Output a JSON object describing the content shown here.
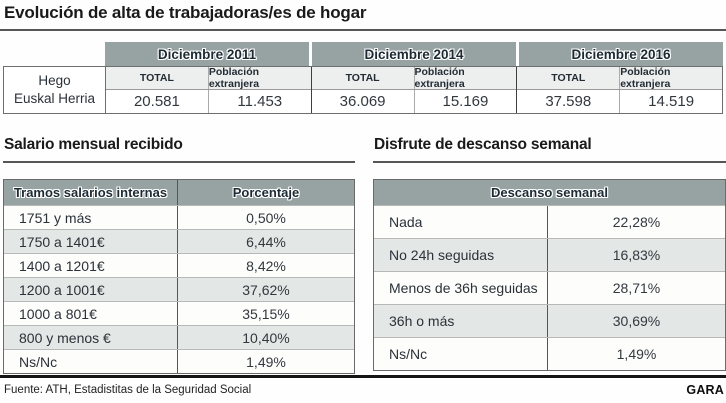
{
  "page_title": "Evolución de alta de trabajadoras/es de hogar",
  "chart_data": [
    {
      "type": "table",
      "title": "Evolución de alta de trabajadoras/es de hogar",
      "row_label_line1": "Hego",
      "row_label_line2": "Euskal Herria",
      "periods": [
        "Diciembre 2011",
        "Diciembre 2014",
        "Diciembre 2016"
      ],
      "subheaders": [
        "TOTAL",
        "Población extranjera"
      ],
      "values": [
        [
          "20.581",
          "11.453"
        ],
        [
          "36.069",
          "15.169"
        ],
        [
          "37.598",
          "14.519"
        ]
      ]
    },
    {
      "type": "table",
      "title": "Salario mensual recibido",
      "headers": [
        "Tramos salarios internas",
        "Porcentaje"
      ],
      "rows": [
        [
          "1751 y más",
          "0,50%"
        ],
        [
          "1750 a 1401€",
          "6,44%"
        ],
        [
          "1400 a 1201€",
          "8,42%"
        ],
        [
          "1200 a 1001€",
          "37,62%"
        ],
        [
          "1000 a 801€",
          "35,15%"
        ],
        [
          "800 y menos €",
          "10,40%"
        ],
        [
          "Ns/Nc",
          "1,49%"
        ]
      ]
    },
    {
      "type": "table",
      "title": "Disfrute de descanso semanal",
      "header": "Descanso semanal",
      "rows": [
        [
          "Nada",
          "22,28%"
        ],
        [
          "No 24h seguidas",
          "16,83%"
        ],
        [
          "Menos de 36h seguidas",
          "28,71%"
        ],
        [
          "36h o más",
          "30,69%"
        ],
        [
          "Ns/Nc",
          "1,49%"
        ]
      ]
    }
  ],
  "footer": {
    "source": "Fuente: ATH, Estadistitas de la Seguridad Social",
    "brand": "GARA"
  },
  "colors": {
    "header_bg": "#97A2A3",
    "header_text": "#1C2A33",
    "subheader_bg": "#EDEFEE",
    "alt_row_bg": "#E3E7E5"
  }
}
